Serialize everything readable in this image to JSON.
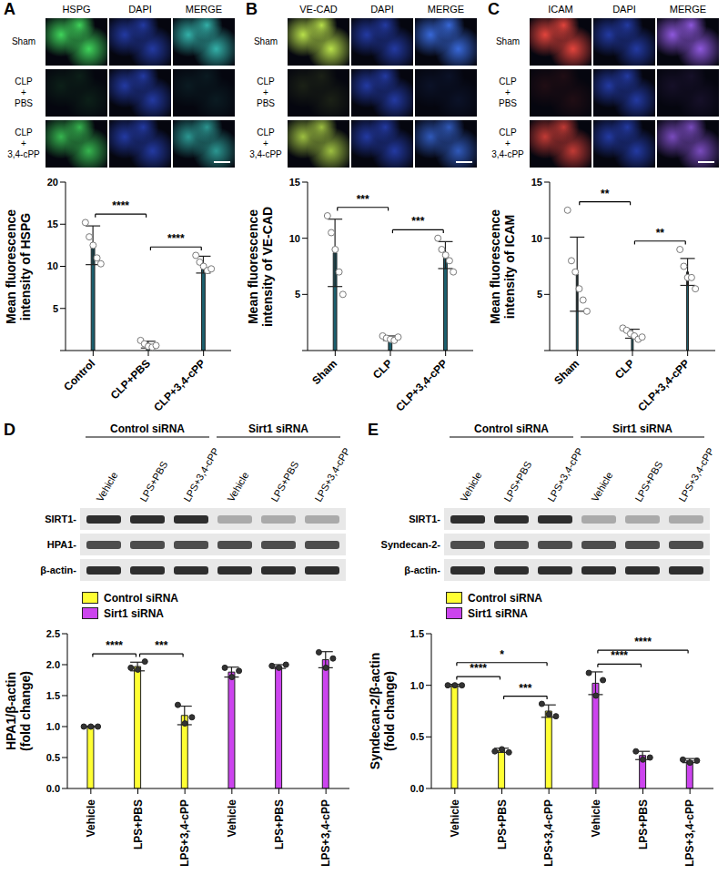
{
  "chart_data": [
    {
      "panel": "A",
      "type": "bar",
      "image_columns": [
        "HSPG",
        "DAPI",
        "MERGE"
      ],
      "image_rows": [
        "Sham",
        "CLP+PBS",
        "CLP+3,4-cPP"
      ],
      "y_label": "Mean fluorescence intensity of HSPG",
      "categories": [
        "Control",
        "CLP+PBS",
        "CLP+3,4-cPP"
      ],
      "values": [
        12.5,
        0.7,
        10.2
      ],
      "errors": [
        2.3,
        0.4,
        1.0
      ],
      "points": [
        [
          15.2,
          13.5,
          12.5,
          11.0,
          10.3
        ],
        [
          1.2,
          0.8,
          0.5,
          0.4,
          0.6
        ],
        [
          11.3,
          10.5,
          10.0,
          9.5,
          9.7
        ]
      ],
      "color": "#1b5f6e",
      "ylim": [
        0,
        20
      ],
      "yticks": [
        0,
        5,
        10,
        15,
        20
      ],
      "significance": [
        {
          "between": [
            0,
            1
          ],
          "label": "****"
        },
        {
          "between": [
            1,
            2
          ],
          "label": "****"
        }
      ]
    },
    {
      "panel": "B",
      "type": "bar",
      "image_columns": [
        "VE-CAD",
        "DAPI",
        "MERGE"
      ],
      "image_rows": [
        "Sham",
        "CLP+PBS",
        "CLP+3,4-cPP"
      ],
      "y_label": "Mean fluorescence intensity of VE-CAD",
      "categories": [
        "Sham",
        "CLP",
        "CLP+3,4-cPP"
      ],
      "values": [
        8.7,
        1.1,
        8.5
      ],
      "errors": [
        3.0,
        0.2,
        1.2
      ],
      "points": [
        [
          12.0,
          10.5,
          9.0,
          7.0,
          5.0
        ],
        [
          1.3,
          1.1,
          1.0,
          0.9,
          1.2
        ],
        [
          10.0,
          9.0,
          8.5,
          8.0,
          7.0
        ]
      ],
      "color": "#1b5f6e",
      "ylim": [
        0,
        15
      ],
      "yticks": [
        0,
        5,
        10,
        15
      ],
      "significance": [
        {
          "between": [
            0,
            1
          ],
          "label": "***"
        },
        {
          "between": [
            1,
            2
          ],
          "label": "***"
        }
      ]
    },
    {
      "panel": "C",
      "type": "bar",
      "image_columns": [
        "ICAM",
        "DAPI",
        "MERGE"
      ],
      "image_rows": [
        "Sham",
        "CLP+PBS",
        "CLP+3,4-cPP"
      ],
      "y_label": "Mean fluorescence intensity of ICAM",
      "categories": [
        "Sham",
        "CLP",
        "CLP+3,4-cPP"
      ],
      "values": [
        6.8,
        1.5,
        7.0
      ],
      "errors": [
        3.3,
        0.4,
        1.2
      ],
      "points": [
        [
          12.5,
          8.0,
          7.0,
          5.5,
          4.5,
          3.5
        ],
        [
          2.0,
          1.8,
          1.5,
          1.3,
          1.0,
          1.2
        ],
        [
          9.0,
          7.5,
          6.5,
          6.5,
          5.5
        ]
      ],
      "color": "#1b5f6e",
      "ylim": [
        0,
        15
      ],
      "yticks": [
        0,
        5,
        10,
        15
      ],
      "significance": [
        {
          "between": [
            0,
            1
          ],
          "label": "**"
        },
        {
          "between": [
            1,
            2
          ],
          "label": "**"
        }
      ]
    },
    {
      "panel": "D",
      "type": "bar",
      "blot": {
        "groups": [
          "Control siRNA",
          "Sirt1 siRNA"
        ],
        "lanes": [
          "Vehicle",
          "LPS+PBS",
          "LPS+3,4-cPP",
          "Vehicle",
          "LPS+PBS",
          "LPS+3,4-cPP"
        ],
        "rows": [
          "SIRT1-",
          "HPA1-",
          "β-actin-"
        ]
      },
      "y_label": "HPA1/β-actin (fold change)",
      "categories": [
        "Vehicle",
        "LPS+PBS",
        "LPS+3,4-cPP",
        "Vehicle",
        "LPS+PBS",
        "LPS+3,4-cPP"
      ],
      "series": [
        {
          "name": "Control siRNA",
          "color": "#ffff33",
          "values": [
            1.0,
            1.97,
            1.18,
            null,
            null,
            null
          ],
          "errors": [
            0.01,
            0.07,
            0.15,
            null,
            null,
            null
          ],
          "points": [
            [
              1.0,
              1.0,
              1.0
            ],
            [
              1.95,
              1.92,
              2.05
            ],
            [
              1.35,
              1.05,
              1.15
            ],
            null,
            null,
            null
          ]
        },
        {
          "name": "Sirt1 siRNA",
          "color": "#cc44ee",
          "values": [
            null,
            null,
            null,
            1.88,
            1.97,
            2.08
          ],
          "errors": [
            null,
            null,
            null,
            0.08,
            0.03,
            0.13
          ],
          "points": [
            null,
            null,
            null,
            [
              1.95,
              1.8,
              1.9
            ],
            [
              1.98,
              1.95,
              2.0
            ],
            [
              2.2,
              1.95,
              2.1
            ]
          ]
        }
      ],
      "legend": "top-left",
      "ylim": [
        0,
        2.5
      ],
      "yticks": [
        {
          "value": 0,
          "label": "0.0"
        },
        {
          "value": 0.5,
          "label": "0.5"
        },
        {
          "value": 1,
          "label": "1.0"
        },
        {
          "value": 1.5,
          "label": "1.5"
        },
        {
          "value": 2,
          "label": "2.0"
        },
        {
          "value": 2.5,
          "label": "2.5"
        }
      ],
      "significance": [
        {
          "between": [
            0,
            1
          ],
          "label": "****"
        },
        {
          "between": [
            1,
            2
          ],
          "label": "***"
        }
      ]
    },
    {
      "panel": "E",
      "type": "bar",
      "blot": {
        "groups": [
          "Control siRNA",
          "Sirt1 siRNA"
        ],
        "lanes": [
          "Vehicle",
          "LPS+PBS",
          "LPS+3,4-cPP",
          "Vehicle",
          "LPS+PBS",
          "LPS+3,4-cPP"
        ],
        "rows": [
          "SIRT1-",
          "Syndecan-2-",
          "β-actin-"
        ]
      },
      "y_label": "Syndecan-2/β-actin (fold change)",
      "categories": [
        "Vehicle",
        "LPS+PBS",
        "LPS+3,4-cPP",
        "Vehicle",
        "LPS+PBS",
        "LPS+3,4-cPP"
      ],
      "series": [
        {
          "name": "Control siRNA",
          "color": "#ffff33",
          "values": [
            1.0,
            0.37,
            0.75,
            null,
            null,
            null
          ],
          "errors": [
            0.01,
            0.02,
            0.06,
            null,
            null,
            null
          ],
          "points": [
            [
              1.0,
              1.0,
              1.0
            ],
            [
              0.36,
              0.38,
              0.35
            ],
            [
              0.82,
              0.72,
              0.7
            ],
            null,
            null,
            null
          ]
        },
        {
          "name": "Sirt1 siRNA",
          "color": "#cc44ee",
          "values": [
            null,
            null,
            null,
            1.02,
            0.32,
            0.27
          ],
          "errors": [
            null,
            null,
            null,
            0.11,
            0.04,
            0.02
          ],
          "points": [
            null,
            null,
            null,
            [
              1.12,
              0.9,
              1.05
            ],
            [
              0.36,
              0.28,
              0.3
            ],
            [
              0.28,
              0.25,
              0.27
            ]
          ]
        }
      ],
      "legend": "top-left",
      "ylim": [
        0,
        1.5
      ],
      "yticks": [
        {
          "value": 0,
          "label": "0.0"
        },
        {
          "value": 0.5,
          "label": "0.5"
        },
        {
          "value": 1,
          "label": "1.0"
        },
        {
          "value": 1.5,
          "label": "1.5"
        }
      ],
      "significance": [
        {
          "between": [
            0,
            2
          ],
          "label": "*"
        },
        {
          "between": [
            0,
            1
          ],
          "label": "****"
        },
        {
          "between": [
            1,
            2
          ],
          "label": "***"
        },
        {
          "between": [
            3,
            5
          ],
          "label": "****"
        },
        {
          "between": [
            3,
            4
          ],
          "label": "****"
        }
      ]
    }
  ]
}
